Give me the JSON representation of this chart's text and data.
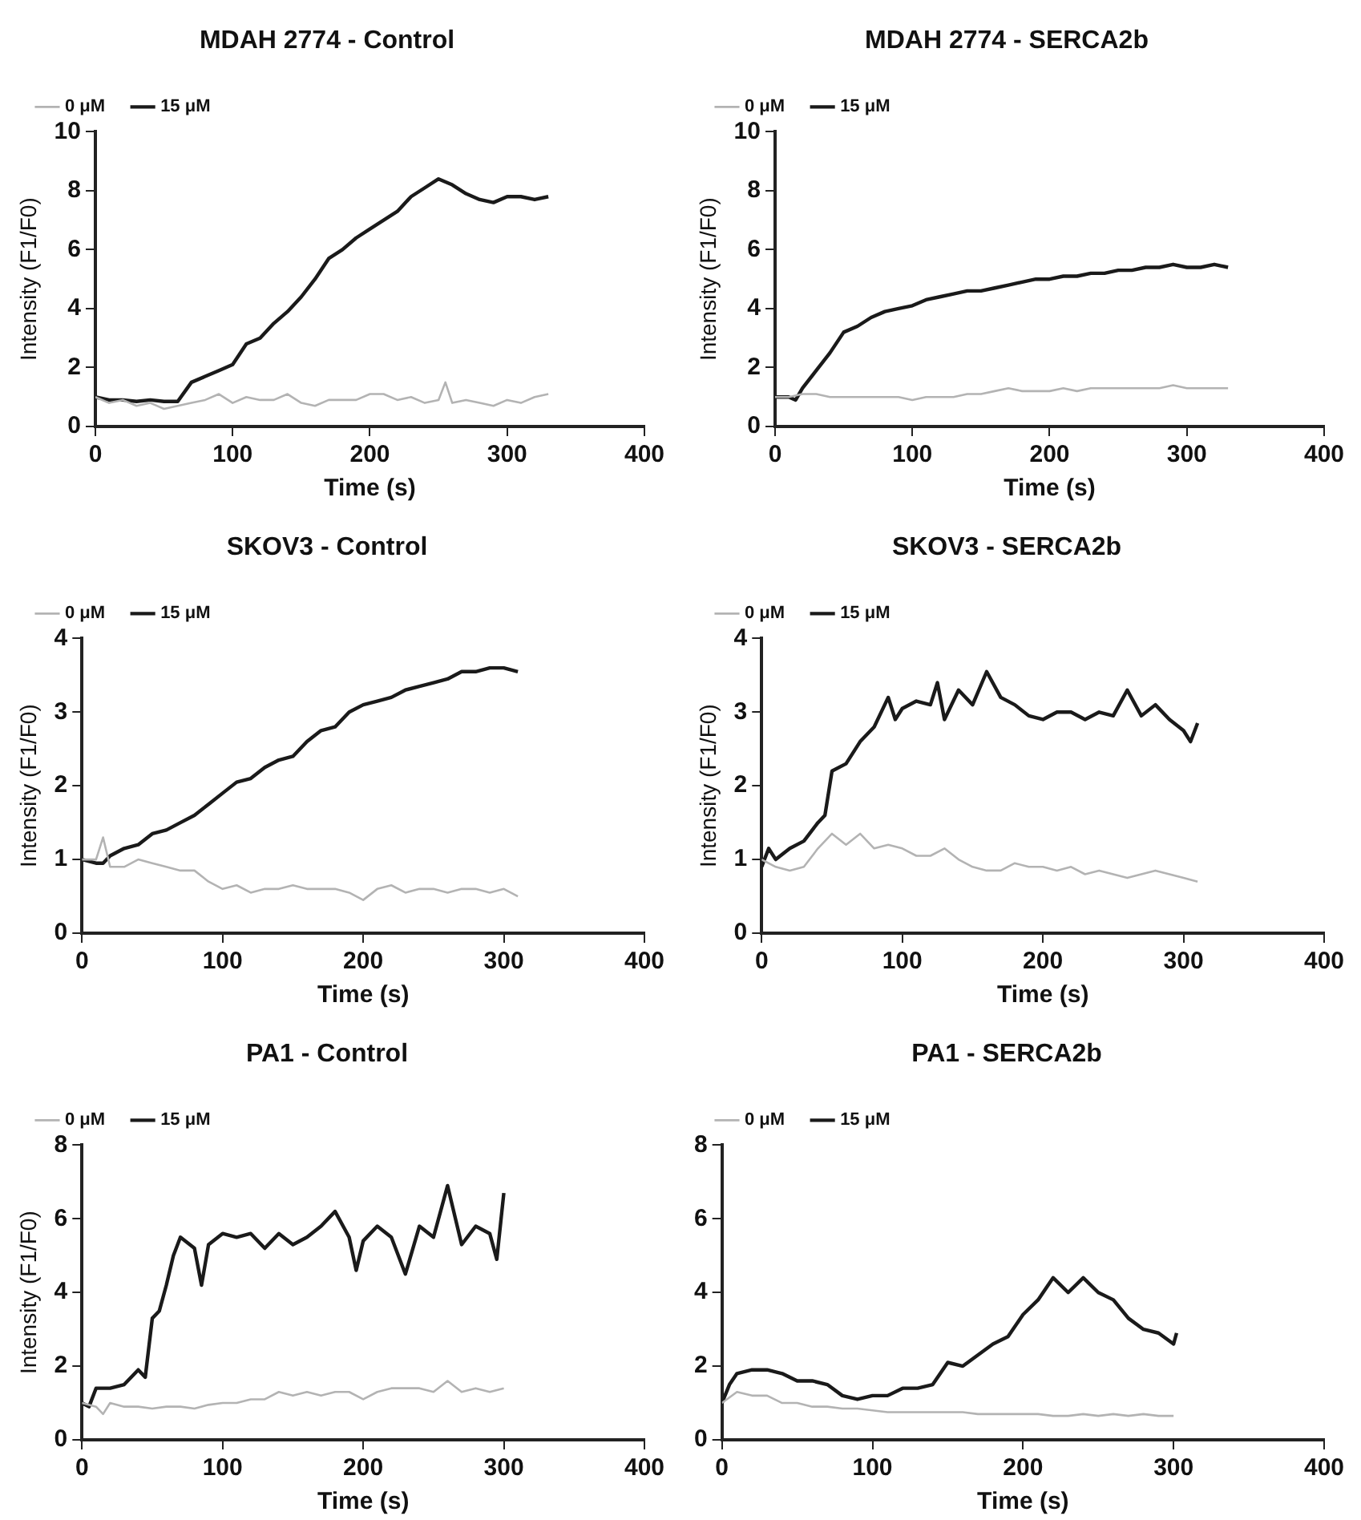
{
  "chart_data": [
    {
      "type": "line",
      "title": "MDAH 2774 - Control",
      "xlabel": "Time (s)",
      "ylabel": "Intensity (F1/F0)",
      "xlim": [
        0,
        400
      ],
      "xticks": [
        0,
        100,
        200,
        300,
        400
      ],
      "ylim": [
        0,
        10
      ],
      "yticks": [
        0,
        2,
        4,
        6,
        8,
        10
      ],
      "legend": "top left",
      "marker": "none",
      "line_style": "solid",
      "series": [
        {
          "name": "0 μM",
          "color": "#b3b3b3",
          "x": [
            0,
            10,
            20,
            30,
            40,
            50,
            60,
            70,
            80,
            90,
            100,
            110,
            120,
            130,
            140,
            150,
            160,
            170,
            180,
            190,
            200,
            210,
            220,
            230,
            240,
            250,
            255,
            260,
            270,
            280,
            290,
            300,
            310,
            320,
            330
          ],
          "values": [
            1.0,
            0.8,
            0.9,
            0.7,
            0.8,
            0.6,
            0.7,
            0.8,
            0.9,
            1.1,
            0.8,
            1.0,
            0.9,
            0.9,
            1.1,
            0.8,
            0.7,
            0.9,
            0.9,
            0.9,
            1.1,
            1.1,
            0.9,
            1.0,
            0.8,
            0.9,
            1.5,
            0.8,
            0.9,
            0.8,
            0.7,
            0.9,
            0.8,
            1.0,
            1.1
          ]
        },
        {
          "name": "15 μM",
          "color": "#1a1a1a",
          "x": [
            0,
            10,
            20,
            30,
            40,
            50,
            60,
            70,
            80,
            90,
            100,
            110,
            120,
            130,
            140,
            150,
            160,
            170,
            180,
            190,
            200,
            210,
            220,
            230,
            240,
            250,
            260,
            270,
            280,
            290,
            300,
            310,
            320,
            330
          ],
          "values": [
            1.0,
            0.9,
            0.9,
            0.85,
            0.9,
            0.85,
            0.85,
            1.5,
            1.7,
            1.9,
            2.1,
            2.8,
            3.0,
            3.5,
            3.9,
            4.4,
            5.0,
            5.7,
            6.0,
            6.4,
            6.7,
            7.0,
            7.3,
            7.8,
            8.1,
            8.4,
            8.2,
            7.9,
            7.7,
            7.6,
            7.8,
            7.8,
            7.7,
            7.8
          ]
        }
      ]
    },
    {
      "type": "line",
      "title": "MDAH 2774 - SERCA2b",
      "xlabel": "Time (s)",
      "ylabel": "Intensity (F1/F0)",
      "xlim": [
        0,
        400
      ],
      "xticks": [
        0,
        100,
        200,
        300,
        400
      ],
      "ylim": [
        0,
        10
      ],
      "yticks": [
        0,
        2,
        4,
        6,
        8,
        10
      ],
      "legend": "top left",
      "marker": "none",
      "line_style": "solid",
      "series": [
        {
          "name": "0 μM",
          "color": "#b3b3b3",
          "x": [
            0,
            10,
            20,
            30,
            40,
            50,
            60,
            70,
            80,
            90,
            100,
            110,
            120,
            130,
            140,
            150,
            160,
            170,
            180,
            190,
            200,
            210,
            220,
            230,
            240,
            250,
            260,
            270,
            280,
            290,
            300,
            310,
            320,
            330
          ],
          "values": [
            1.0,
            1.0,
            1.1,
            1.1,
            1.0,
            1.0,
            1.0,
            1.0,
            1.0,
            1.0,
            0.9,
            1.0,
            1.0,
            1.0,
            1.1,
            1.1,
            1.2,
            1.3,
            1.2,
            1.2,
            1.2,
            1.3,
            1.2,
            1.3,
            1.3,
            1.3,
            1.3,
            1.3,
            1.3,
            1.4,
            1.3,
            1.3,
            1.3,
            1.3
          ]
        },
        {
          "name": "15 μM",
          "color": "#1a1a1a",
          "x": [
            0,
            10,
            15,
            20,
            30,
            40,
            50,
            60,
            70,
            80,
            90,
            100,
            110,
            120,
            130,
            140,
            150,
            160,
            170,
            180,
            190,
            200,
            210,
            220,
            230,
            240,
            250,
            260,
            270,
            280,
            290,
            300,
            310,
            320,
            330
          ],
          "values": [
            1.0,
            1.0,
            0.9,
            1.3,
            1.9,
            2.5,
            3.2,
            3.4,
            3.7,
            3.9,
            4.0,
            4.1,
            4.3,
            4.4,
            4.5,
            4.6,
            4.6,
            4.7,
            4.8,
            4.9,
            5.0,
            5.0,
            5.1,
            5.1,
            5.2,
            5.2,
            5.3,
            5.3,
            5.4,
            5.4,
            5.5,
            5.4,
            5.4,
            5.5,
            5.4
          ]
        }
      ]
    },
    {
      "type": "line",
      "title": "SKOV3 - Control",
      "xlabel": "Time (s)",
      "ylabel": "Intensity (F1/F0)",
      "xlim": [
        0,
        400
      ],
      "xticks": [
        0,
        100,
        200,
        300,
        400
      ],
      "ylim": [
        0,
        4
      ],
      "yticks": [
        0,
        1,
        2,
        3,
        4
      ],
      "legend": "top left",
      "marker": "none",
      "line_style": "solid",
      "series": [
        {
          "name": "0 μM",
          "color": "#b3b3b3",
          "x": [
            0,
            10,
            15,
            20,
            30,
            40,
            50,
            60,
            70,
            80,
            90,
            100,
            110,
            120,
            130,
            140,
            150,
            160,
            170,
            180,
            190,
            200,
            210,
            220,
            230,
            240,
            250,
            260,
            270,
            280,
            290,
            300,
            310
          ],
          "values": [
            1.0,
            1.0,
            1.3,
            0.9,
            0.9,
            1.0,
            0.95,
            0.9,
            0.85,
            0.85,
            0.7,
            0.6,
            0.65,
            0.55,
            0.6,
            0.6,
            0.65,
            0.6,
            0.6,
            0.6,
            0.55,
            0.45,
            0.6,
            0.65,
            0.55,
            0.6,
            0.6,
            0.55,
            0.6,
            0.6,
            0.55,
            0.6,
            0.5
          ]
        },
        {
          "name": "15 μM",
          "color": "#1a1a1a",
          "x": [
            0,
            10,
            15,
            20,
            30,
            40,
            50,
            60,
            70,
            80,
            90,
            100,
            110,
            120,
            130,
            140,
            150,
            160,
            170,
            180,
            190,
            200,
            210,
            220,
            230,
            240,
            250,
            260,
            270,
            280,
            290,
            300,
            310
          ],
          "values": [
            1.0,
            0.95,
            0.95,
            1.05,
            1.15,
            1.2,
            1.35,
            1.4,
            1.5,
            1.6,
            1.75,
            1.9,
            2.05,
            2.1,
            2.25,
            2.35,
            2.4,
            2.6,
            2.75,
            2.8,
            3.0,
            3.1,
            3.15,
            3.2,
            3.3,
            3.35,
            3.4,
            3.45,
            3.55,
            3.55,
            3.6,
            3.6,
            3.55
          ]
        }
      ]
    },
    {
      "type": "line",
      "title": "SKOV3 - SERCA2b",
      "xlabel": "Time (s)",
      "ylabel": "Intensity (F1/F0)",
      "xlim": [
        0,
        400
      ],
      "xticks": [
        0,
        100,
        200,
        300,
        400
      ],
      "ylim": [
        0,
        4
      ],
      "yticks": [
        0,
        1,
        2,
        3,
        4
      ],
      "legend": "top left",
      "marker": "none",
      "line_style": "solid",
      "series": [
        {
          "name": "0 μM",
          "color": "#b3b3b3",
          "x": [
            0,
            10,
            20,
            30,
            40,
            50,
            60,
            70,
            80,
            90,
            100,
            110,
            120,
            130,
            140,
            150,
            160,
            170,
            180,
            190,
            200,
            210,
            220,
            230,
            240,
            250,
            260,
            270,
            280,
            290,
            300,
            310
          ],
          "values": [
            1.0,
            0.9,
            0.85,
            0.9,
            1.15,
            1.35,
            1.2,
            1.35,
            1.15,
            1.2,
            1.15,
            1.05,
            1.05,
            1.15,
            1.0,
            0.9,
            0.85,
            0.85,
            0.95,
            0.9,
            0.9,
            0.85,
            0.9,
            0.8,
            0.85,
            0.8,
            0.75,
            0.8,
            0.85,
            0.8,
            0.75,
            0.7
          ]
        },
        {
          "name": "15 μM",
          "color": "#1a1a1a",
          "x": [
            0,
            5,
            10,
            20,
            30,
            40,
            45,
            50,
            60,
            70,
            80,
            90,
            95,
            100,
            110,
            120,
            125,
            130,
            140,
            150,
            160,
            170,
            180,
            190,
            200,
            210,
            220,
            230,
            240,
            250,
            260,
            270,
            280,
            290,
            300,
            305,
            310
          ],
          "values": [
            0.9,
            1.15,
            1.0,
            1.15,
            1.25,
            1.5,
            1.6,
            2.2,
            2.3,
            2.6,
            2.8,
            3.2,
            2.9,
            3.05,
            3.15,
            3.1,
            3.4,
            2.9,
            3.3,
            3.1,
            3.55,
            3.2,
            3.1,
            2.95,
            2.9,
            3.0,
            3.0,
            2.9,
            3.0,
            2.95,
            3.3,
            2.95,
            3.1,
            2.9,
            2.75,
            2.6,
            2.85
          ]
        }
      ]
    },
    {
      "type": "line",
      "title": "PA1 - Control",
      "xlabel": "Time (s)",
      "ylabel": "Intensity (F1/F0)",
      "xlim": [
        0,
        400
      ],
      "xticks": [
        0,
        100,
        200,
        300,
        400
      ],
      "ylim": [
        0,
        8
      ],
      "yticks": [
        0,
        2,
        4,
        6,
        8
      ],
      "legend": "top left",
      "marker": "none",
      "line_style": "solid",
      "series": [
        {
          "name": "0 μM",
          "color": "#b3b3b3",
          "x": [
            0,
            10,
            15,
            20,
            30,
            40,
            50,
            60,
            70,
            80,
            90,
            100,
            110,
            120,
            130,
            140,
            150,
            160,
            170,
            180,
            190,
            200,
            210,
            220,
            230,
            240,
            250,
            260,
            270,
            280,
            290,
            300
          ],
          "values": [
            1.0,
            0.9,
            0.7,
            1.0,
            0.9,
            0.9,
            0.85,
            0.9,
            0.9,
            0.85,
            0.95,
            1.0,
            1.0,
            1.1,
            1.1,
            1.3,
            1.2,
            1.3,
            1.2,
            1.3,
            1.3,
            1.1,
            1.3,
            1.4,
            1.4,
            1.4,
            1.3,
            1.6,
            1.3,
            1.4,
            1.3,
            1.4
          ]
        },
        {
          "name": "15 μM",
          "color": "#1a1a1a",
          "x": [
            0,
            5,
            10,
            20,
            30,
            40,
            45,
            50,
            55,
            60,
            65,
            70,
            80,
            85,
            90,
            100,
            110,
            120,
            130,
            140,
            150,
            160,
            170,
            180,
            190,
            195,
            200,
            210,
            220,
            230,
            240,
            250,
            260,
            270,
            280,
            290,
            295,
            300
          ],
          "values": [
            1.0,
            0.9,
            1.4,
            1.4,
            1.5,
            1.9,
            1.7,
            3.3,
            3.5,
            4.2,
            5.0,
            5.5,
            5.2,
            4.2,
            5.3,
            5.6,
            5.5,
            5.6,
            5.2,
            5.6,
            5.3,
            5.5,
            5.8,
            6.2,
            5.5,
            4.6,
            5.4,
            5.8,
            5.5,
            4.5,
            5.8,
            5.5,
            6.9,
            5.3,
            5.8,
            5.6,
            4.9,
            6.7
          ]
        }
      ]
    },
    {
      "type": "line",
      "title": "PA1 - SERCA2b",
      "xlabel": "Time (s)",
      "xlim": [
        0,
        400
      ],
      "xticks": [
        0,
        100,
        200,
        300,
        400
      ],
      "ylim": [
        0,
        8
      ],
      "yticks": [
        0,
        2,
        4,
        6,
        8
      ],
      "legend": "top left",
      "marker": "none",
      "line_style": "solid",
      "series": [
        {
          "name": "0 μM",
          "color": "#b3b3b3",
          "x": [
            0,
            10,
            20,
            30,
            40,
            50,
            60,
            70,
            80,
            90,
            100,
            110,
            120,
            130,
            140,
            150,
            160,
            170,
            180,
            190,
            200,
            210,
            220,
            230,
            240,
            250,
            260,
            270,
            280,
            290,
            300
          ],
          "values": [
            1.0,
            1.3,
            1.2,
            1.2,
            1.0,
            1.0,
            0.9,
            0.9,
            0.85,
            0.85,
            0.8,
            0.75,
            0.75,
            0.75,
            0.75,
            0.75,
            0.75,
            0.7,
            0.7,
            0.7,
            0.7,
            0.7,
            0.65,
            0.65,
            0.7,
            0.65,
            0.7,
            0.65,
            0.7,
            0.65,
            0.65
          ]
        },
        {
          "name": "15 μM",
          "color": "#1a1a1a",
          "x": [
            0,
            5,
            10,
            20,
            30,
            40,
            50,
            60,
            70,
            80,
            90,
            100,
            110,
            120,
            130,
            140,
            150,
            160,
            170,
            180,
            190,
            200,
            210,
            220,
            230,
            240,
            250,
            260,
            270,
            280,
            290,
            300,
            302
          ],
          "values": [
            1.0,
            1.5,
            1.8,
            1.9,
            1.9,
            1.8,
            1.6,
            1.6,
            1.5,
            1.2,
            1.1,
            1.2,
            1.2,
            1.4,
            1.4,
            1.5,
            2.1,
            2.0,
            2.3,
            2.6,
            2.8,
            3.4,
            3.8,
            4.4,
            4.0,
            4.4,
            4.0,
            3.8,
            3.3,
            3.0,
            2.9,
            2.6,
            2.9
          ]
        }
      ]
    }
  ]
}
